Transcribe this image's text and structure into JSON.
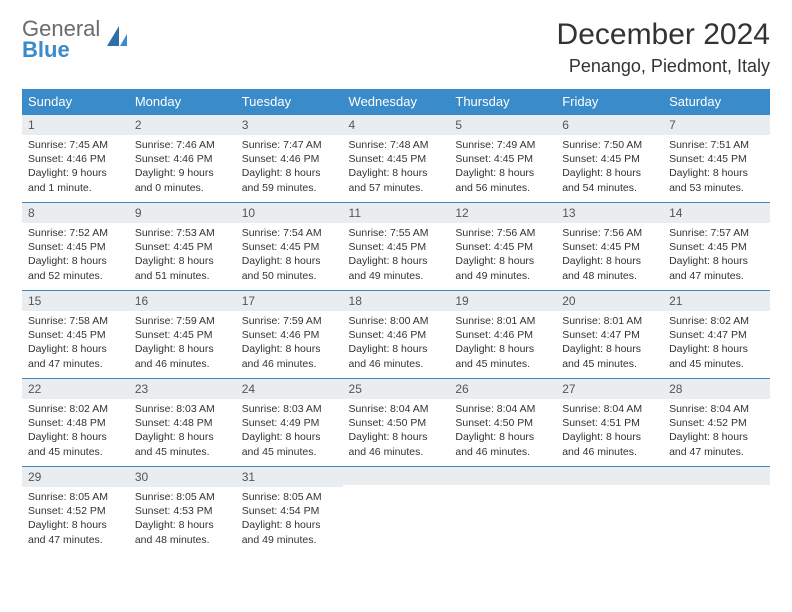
{
  "brand": {
    "line1": "General",
    "line2": "Blue"
  },
  "title": "December 2024",
  "location": "Penango, Piedmont, Italy",
  "colors": {
    "header_bg": "#3a8bc9",
    "header_text": "#ffffff",
    "daynum_bg": "#e9edf0",
    "cell_border": "#3a8bc9",
    "page_bg": "#ffffff",
    "text": "#333333"
  },
  "typography": {
    "title_fontsize": 30,
    "location_fontsize": 18,
    "dow_fontsize": 13,
    "daynum_fontsize": 12,
    "body_fontsize": 10.5
  },
  "weekdays": [
    "Sunday",
    "Monday",
    "Tuesday",
    "Wednesday",
    "Thursday",
    "Friday",
    "Saturday"
  ],
  "weeks": [
    [
      {
        "n": "1",
        "sr": "Sunrise: 7:45 AM",
        "ss": "Sunset: 4:46 PM",
        "dl": "Daylight: 9 hours and 1 minute."
      },
      {
        "n": "2",
        "sr": "Sunrise: 7:46 AM",
        "ss": "Sunset: 4:46 PM",
        "dl": "Daylight: 9 hours and 0 minutes."
      },
      {
        "n": "3",
        "sr": "Sunrise: 7:47 AM",
        "ss": "Sunset: 4:46 PM",
        "dl": "Daylight: 8 hours and 59 minutes."
      },
      {
        "n": "4",
        "sr": "Sunrise: 7:48 AM",
        "ss": "Sunset: 4:45 PM",
        "dl": "Daylight: 8 hours and 57 minutes."
      },
      {
        "n": "5",
        "sr": "Sunrise: 7:49 AM",
        "ss": "Sunset: 4:45 PM",
        "dl": "Daylight: 8 hours and 56 minutes."
      },
      {
        "n": "6",
        "sr": "Sunrise: 7:50 AM",
        "ss": "Sunset: 4:45 PM",
        "dl": "Daylight: 8 hours and 54 minutes."
      },
      {
        "n": "7",
        "sr": "Sunrise: 7:51 AM",
        "ss": "Sunset: 4:45 PM",
        "dl": "Daylight: 8 hours and 53 minutes."
      }
    ],
    [
      {
        "n": "8",
        "sr": "Sunrise: 7:52 AM",
        "ss": "Sunset: 4:45 PM",
        "dl": "Daylight: 8 hours and 52 minutes."
      },
      {
        "n": "9",
        "sr": "Sunrise: 7:53 AM",
        "ss": "Sunset: 4:45 PM",
        "dl": "Daylight: 8 hours and 51 minutes."
      },
      {
        "n": "10",
        "sr": "Sunrise: 7:54 AM",
        "ss": "Sunset: 4:45 PM",
        "dl": "Daylight: 8 hours and 50 minutes."
      },
      {
        "n": "11",
        "sr": "Sunrise: 7:55 AM",
        "ss": "Sunset: 4:45 PM",
        "dl": "Daylight: 8 hours and 49 minutes."
      },
      {
        "n": "12",
        "sr": "Sunrise: 7:56 AM",
        "ss": "Sunset: 4:45 PM",
        "dl": "Daylight: 8 hours and 49 minutes."
      },
      {
        "n": "13",
        "sr": "Sunrise: 7:56 AM",
        "ss": "Sunset: 4:45 PM",
        "dl": "Daylight: 8 hours and 48 minutes."
      },
      {
        "n": "14",
        "sr": "Sunrise: 7:57 AM",
        "ss": "Sunset: 4:45 PM",
        "dl": "Daylight: 8 hours and 47 minutes."
      }
    ],
    [
      {
        "n": "15",
        "sr": "Sunrise: 7:58 AM",
        "ss": "Sunset: 4:45 PM",
        "dl": "Daylight: 8 hours and 47 minutes."
      },
      {
        "n": "16",
        "sr": "Sunrise: 7:59 AM",
        "ss": "Sunset: 4:45 PM",
        "dl": "Daylight: 8 hours and 46 minutes."
      },
      {
        "n": "17",
        "sr": "Sunrise: 7:59 AM",
        "ss": "Sunset: 4:46 PM",
        "dl": "Daylight: 8 hours and 46 minutes."
      },
      {
        "n": "18",
        "sr": "Sunrise: 8:00 AM",
        "ss": "Sunset: 4:46 PM",
        "dl": "Daylight: 8 hours and 46 minutes."
      },
      {
        "n": "19",
        "sr": "Sunrise: 8:01 AM",
        "ss": "Sunset: 4:46 PM",
        "dl": "Daylight: 8 hours and 45 minutes."
      },
      {
        "n": "20",
        "sr": "Sunrise: 8:01 AM",
        "ss": "Sunset: 4:47 PM",
        "dl": "Daylight: 8 hours and 45 minutes."
      },
      {
        "n": "21",
        "sr": "Sunrise: 8:02 AM",
        "ss": "Sunset: 4:47 PM",
        "dl": "Daylight: 8 hours and 45 minutes."
      }
    ],
    [
      {
        "n": "22",
        "sr": "Sunrise: 8:02 AM",
        "ss": "Sunset: 4:48 PM",
        "dl": "Daylight: 8 hours and 45 minutes."
      },
      {
        "n": "23",
        "sr": "Sunrise: 8:03 AM",
        "ss": "Sunset: 4:48 PM",
        "dl": "Daylight: 8 hours and 45 minutes."
      },
      {
        "n": "24",
        "sr": "Sunrise: 8:03 AM",
        "ss": "Sunset: 4:49 PM",
        "dl": "Daylight: 8 hours and 45 minutes."
      },
      {
        "n": "25",
        "sr": "Sunrise: 8:04 AM",
        "ss": "Sunset: 4:50 PM",
        "dl": "Daylight: 8 hours and 46 minutes."
      },
      {
        "n": "26",
        "sr": "Sunrise: 8:04 AM",
        "ss": "Sunset: 4:50 PM",
        "dl": "Daylight: 8 hours and 46 minutes."
      },
      {
        "n": "27",
        "sr": "Sunrise: 8:04 AM",
        "ss": "Sunset: 4:51 PM",
        "dl": "Daylight: 8 hours and 46 minutes."
      },
      {
        "n": "28",
        "sr": "Sunrise: 8:04 AM",
        "ss": "Sunset: 4:52 PM",
        "dl": "Daylight: 8 hours and 47 minutes."
      }
    ],
    [
      {
        "n": "29",
        "sr": "Sunrise: 8:05 AM",
        "ss": "Sunset: 4:52 PM",
        "dl": "Daylight: 8 hours and 47 minutes."
      },
      {
        "n": "30",
        "sr": "Sunrise: 8:05 AM",
        "ss": "Sunset: 4:53 PM",
        "dl": "Daylight: 8 hours and 48 minutes."
      },
      {
        "n": "31",
        "sr": "Sunrise: 8:05 AM",
        "ss": "Sunset: 4:54 PM",
        "dl": "Daylight: 8 hours and 49 minutes."
      },
      null,
      null,
      null,
      null
    ]
  ]
}
